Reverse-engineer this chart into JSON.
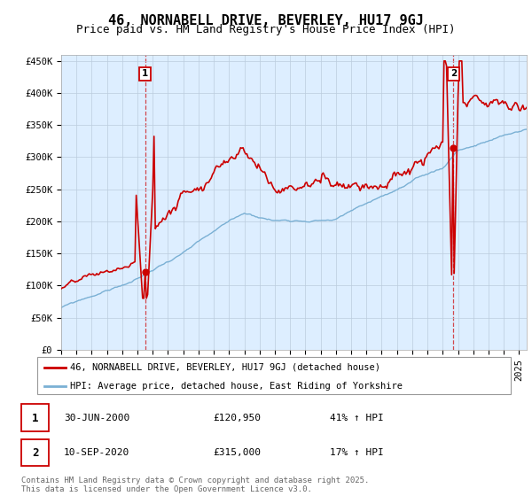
{
  "title": "46, NORNABELL DRIVE, BEVERLEY, HU17 9GJ",
  "subtitle": "Price paid vs. HM Land Registry's House Price Index (HPI)",
  "house_color": "#cc0000",
  "hpi_color": "#7ab0d4",
  "vline_color": "#cc0000",
  "background_color": "#ffffff",
  "plot_bg_color": "#ddeeff",
  "grid_color": "#bbccdd",
  "ylim": [
    0,
    460000
  ],
  "yticks": [
    0,
    50000,
    100000,
    150000,
    200000,
    250000,
    300000,
    350000,
    400000,
    450000
  ],
  "ytick_labels": [
    "£0",
    "£50K",
    "£100K",
    "£150K",
    "£200K",
    "£250K",
    "£300K",
    "£350K",
    "£400K",
    "£450K"
  ],
  "xlim_start": 1995.0,
  "xlim_end": 2025.5,
  "purchase1_x": 2000.5,
  "purchase1_y": 120950,
  "purchase2_x": 2020.7,
  "purchase2_y": 315000,
  "legend_house": "46, NORNABELL DRIVE, BEVERLEY, HU17 9GJ (detached house)",
  "legend_hpi": "HPI: Average price, detached house, East Riding of Yorkshire",
  "annotation1_date": "30-JUN-2000",
  "annotation1_price": "£120,950",
  "annotation1_hpi": "41% ↑ HPI",
  "annotation2_date": "10-SEP-2020",
  "annotation2_price": "£315,000",
  "annotation2_hpi": "17% ↑ HPI",
  "footer": "Contains HM Land Registry data © Crown copyright and database right 2025.\nThis data is licensed under the Open Government Licence v3.0.",
  "title_fontsize": 11,
  "subtitle_fontsize": 9,
  "tick_fontsize": 7.5,
  "legend_fontsize": 7.5,
  "annotation_fontsize": 8,
  "footer_fontsize": 6.5
}
